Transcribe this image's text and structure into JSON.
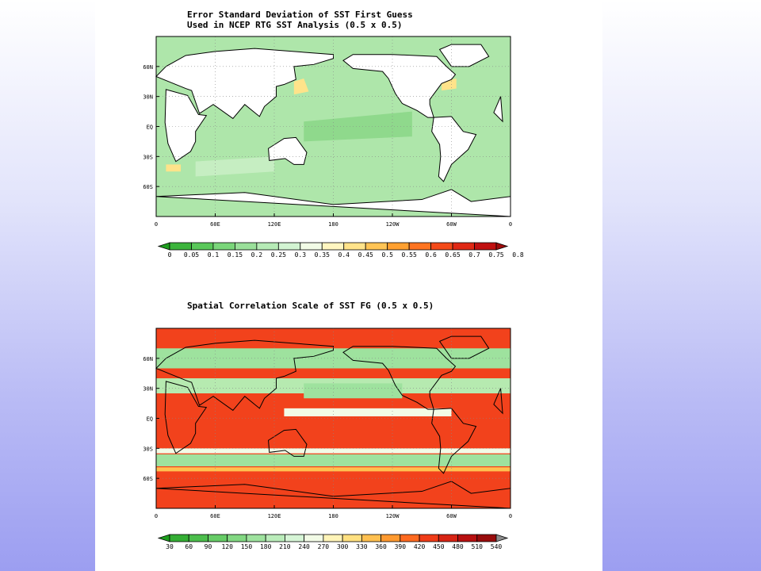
{
  "chart_data": [
    {
      "type": "heatmap",
      "title": "Error Standard Deviation of SST First Guess",
      "subtitle": "Used in NCEP RTG SST Analysis (0.5 x 0.5)",
      "xlabel": "",
      "ylabel": "",
      "x_ticks": [
        "0",
        "60E",
        "120E",
        "180",
        "120W",
        "60W",
        "0"
      ],
      "y_ticks": [
        "60N",
        "30N",
        "EQ",
        "30S",
        "60S"
      ],
      "xlim": [
        0,
        360
      ],
      "ylim": [
        -90,
        90
      ],
      "grid": true,
      "colorbar": {
        "labels": [
          "0",
          "0.05",
          "0.1",
          "0.15",
          "0.2",
          "0.25",
          "0.3",
          "0.35",
          "0.4",
          "0.45",
          "0.5",
          "0.55",
          "0.6",
          "0.65",
          "0.7",
          "0.75",
          "0.8"
        ],
        "colors": [
          "#1e9e1e",
          "#3cb43c",
          "#5ac85a",
          "#7ad67a",
          "#9ae09a",
          "#b6ebb6",
          "#d2f4d2",
          "#f2fbe6",
          "#fff6c0",
          "#ffe38a",
          "#ffc455",
          "#ffa030",
          "#ff7420",
          "#f44a18",
          "#e02814",
          "#c01010",
          "#a00c0c"
        ]
      }
    },
    {
      "type": "heatmap",
      "title": "Spatial Correlation Scale of SST FG (0.5 x 0.5)",
      "xlabel": "",
      "ylabel": "",
      "x_ticks": [
        "0",
        "60E",
        "120E",
        "180",
        "120W",
        "60W",
        "0"
      ],
      "y_ticks": [
        "60N",
        "30N",
        "EQ",
        "30S",
        "60S"
      ],
      "xlim": [
        0,
        360
      ],
      "ylim": [
        -90,
        90
      ],
      "grid": true,
      "colorbar": {
        "labels": [
          "30",
          "60",
          "90",
          "120",
          "150",
          "180",
          "210",
          "240",
          "270",
          "300",
          "330",
          "360",
          "390",
          "420",
          "450",
          "480",
          "510",
          "540"
        ],
        "colors": [
          "#1e9e1e",
          "#34ae34",
          "#4cbe4c",
          "#66cc66",
          "#82d882",
          "#9ee29e",
          "#baecba",
          "#d6f5d6",
          "#f2fbe6",
          "#fff4b8",
          "#ffe080",
          "#ffc050",
          "#ff9a30",
          "#ff6a20",
          "#f03c18",
          "#d82414",
          "#b81010",
          "#980c0c",
          "#8c8c8c"
        ]
      }
    }
  ]
}
